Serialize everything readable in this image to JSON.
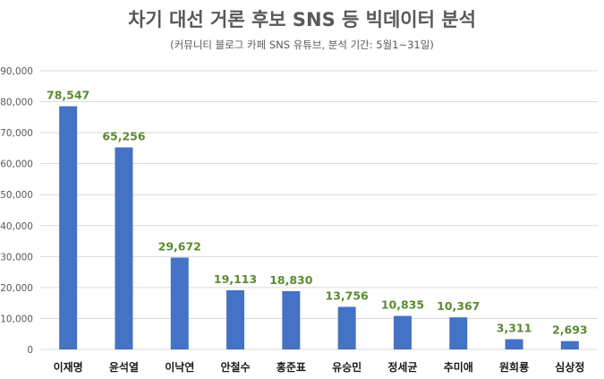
{
  "chart_data": {
    "type": "bar",
    "title": "차기 대선 거론 후보 SNS 등 빅데이터 분석",
    "subtitle": "(커뮤니티 블로그 카페 SNS  유튜브, 분석 기간: 5월1~31일)",
    "categories": [
      "이재명",
      "윤석열",
      "이낙연",
      "안철수",
      "홍준표",
      "유승민",
      "정세균",
      "추미애",
      "원희룡",
      "심상정"
    ],
    "values": [
      78547,
      65256,
      29672,
      19113,
      18830,
      13756,
      10835,
      10367,
      3311,
      2693
    ],
    "data_labels": [
      "78,547",
      "65,256",
      "29,672",
      "19,113",
      "18,830",
      "13,756",
      "10,835",
      "10,367",
      "3,311",
      "2,693"
    ],
    "y_ticks": [
      0,
      10000,
      20000,
      30000,
      40000,
      50000,
      60000,
      70000,
      80000,
      90000
    ],
    "y_tick_labels": [
      "0",
      "10,000",
      "20,000",
      "30,000",
      "40,000",
      "50,000",
      "60,000",
      "70,000",
      "80,000",
      "90,000"
    ],
    "ylim": [
      0,
      90000
    ],
    "xlabel": "",
    "ylabel": "",
    "grid": true,
    "legend": "none",
    "colors": {
      "bar": "#4472c4",
      "data_label": "#5a8a2f",
      "grid": "#d9d9d9",
      "axis_text": "#595959"
    }
  }
}
